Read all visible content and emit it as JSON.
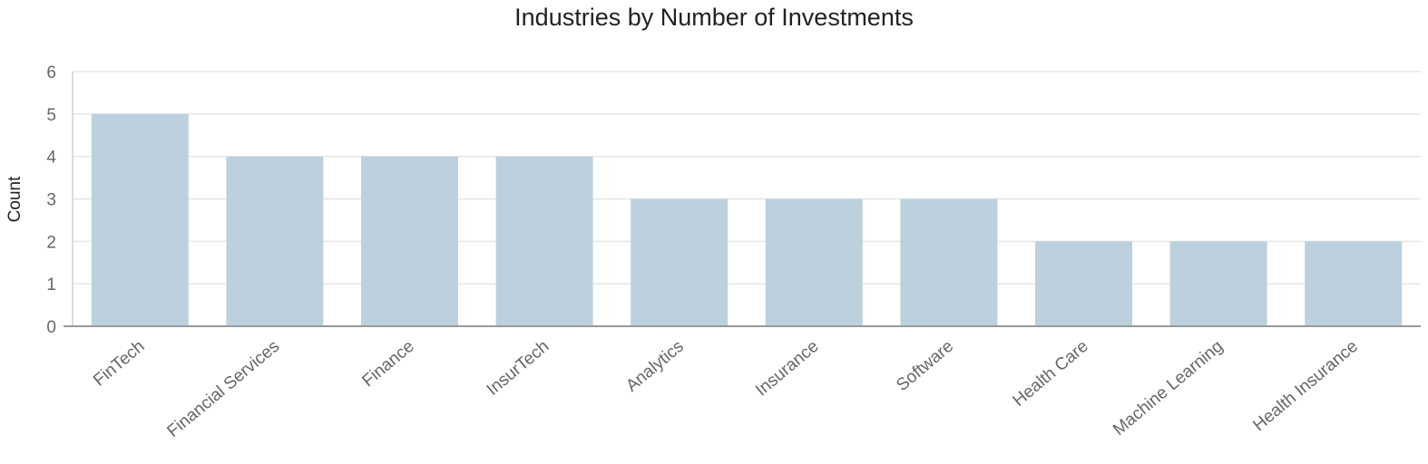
{
  "chart_data": {
    "type": "bar",
    "title": "Industries by Number of Investments",
    "xlabel": "",
    "ylabel": "Count",
    "categories": [
      "FinTech",
      "Financial Services",
      "Finance",
      "InsurTech",
      "Analytics",
      "Insurance",
      "Software",
      "Health Care",
      "Machine Learning",
      "Health Insurance"
    ],
    "values": [
      5,
      4,
      4,
      4,
      3,
      3,
      3,
      2,
      2,
      2
    ],
    "ylim": [
      0,
      6
    ],
    "yticks": [
      "0",
      "1",
      "2",
      "3",
      "4",
      "5",
      "6"
    ],
    "grid": true,
    "legend": "none",
    "colors": {
      "bar": "#bcd1dd",
      "grid": "#e6e6e6",
      "axis": "#999999"
    }
  }
}
